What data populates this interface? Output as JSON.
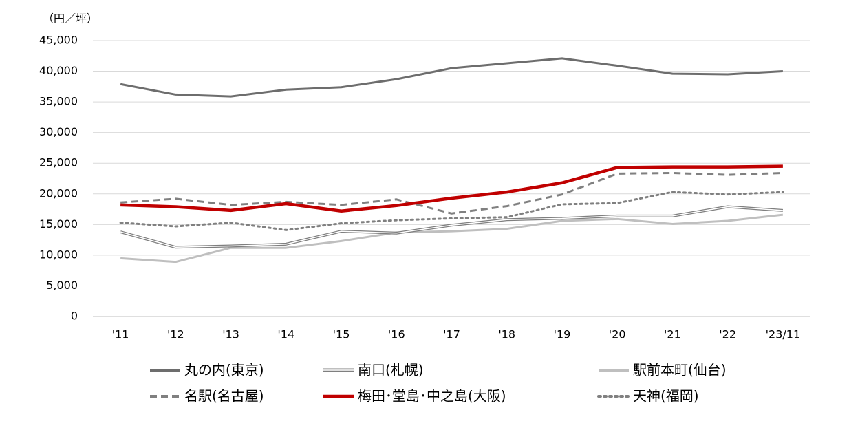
{
  "chart_data": {
    "type": "line",
    "y_unit_label": "（円／坪）",
    "categories": [
      "'11",
      "'12",
      "'13",
      "'14",
      "'15",
      "'16",
      "'17",
      "'18",
      "'19",
      "'20",
      "'21",
      "'22",
      "'23/11"
    ],
    "ylim": [
      0,
      45000
    ],
    "yticks": [
      0,
      {
        "value": 5000,
        "label": "5,000"
      },
      {
        "value": 10000,
        "label": "10,000"
      },
      {
        "value": 15000,
        "label": "15,000"
      },
      {
        "value": 20000,
        "label": "20,000"
      },
      {
        "value": 25000,
        "label": "25,000"
      },
      {
        "value": 30000,
        "label": "30,000"
      },
      {
        "value": 35000,
        "label": "35,000"
      },
      {
        "value": 40000,
        "label": "40,000"
      },
      {
        "value": 45000,
        "label": "45,000"
      }
    ],
    "grid": true,
    "series": [
      {
        "name": "丸の内(東京)",
        "color": "#6d6d6d",
        "style": "solid",
        "values": [
          37900,
          36200,
          35900,
          37000,
          37400,
          38700,
          40500,
          41300,
          42100,
          40900,
          39600,
          39500,
          40000
        ]
      },
      {
        "name": "南口(札幌)",
        "color": "#7f7f7f",
        "style": "double",
        "values": [
          13800,
          11300,
          11500,
          11800,
          13900,
          13600,
          14900,
          15800,
          16000,
          16400,
          16400,
          17900,
          17300
        ]
      },
      {
        "name": "駅前本町(仙台)",
        "color": "#bfbfbf",
        "style": "solid",
        "values": [
          9500,
          8900,
          11200,
          11200,
          12300,
          13700,
          13900,
          14300,
          15600,
          15900,
          15100,
          15600,
          16600
        ]
      },
      {
        "name": "名駅(名古屋)",
        "color": "#808080",
        "style": "dashed",
        "values": [
          18600,
          19200,
          18200,
          18700,
          18200,
          19100,
          16800,
          18000,
          19900,
          23300,
          23400,
          23100,
          23400
        ]
      },
      {
        "name": "梅田･堂島･中之島(大阪)",
        "color": "#c00000",
        "style": "bold",
        "values": [
          18200,
          17900,
          17300,
          18400,
          17200,
          18100,
          19300,
          20300,
          21800,
          24300,
          24400,
          24400,
          24500
        ]
      },
      {
        "name": "天神(福岡)",
        "color": "#808080",
        "style": "dotted",
        "values": [
          15300,
          14700,
          15300,
          14100,
          15200,
          15700,
          16000,
          16200,
          18300,
          18500,
          20300,
          19900,
          20300
        ]
      }
    ]
  }
}
